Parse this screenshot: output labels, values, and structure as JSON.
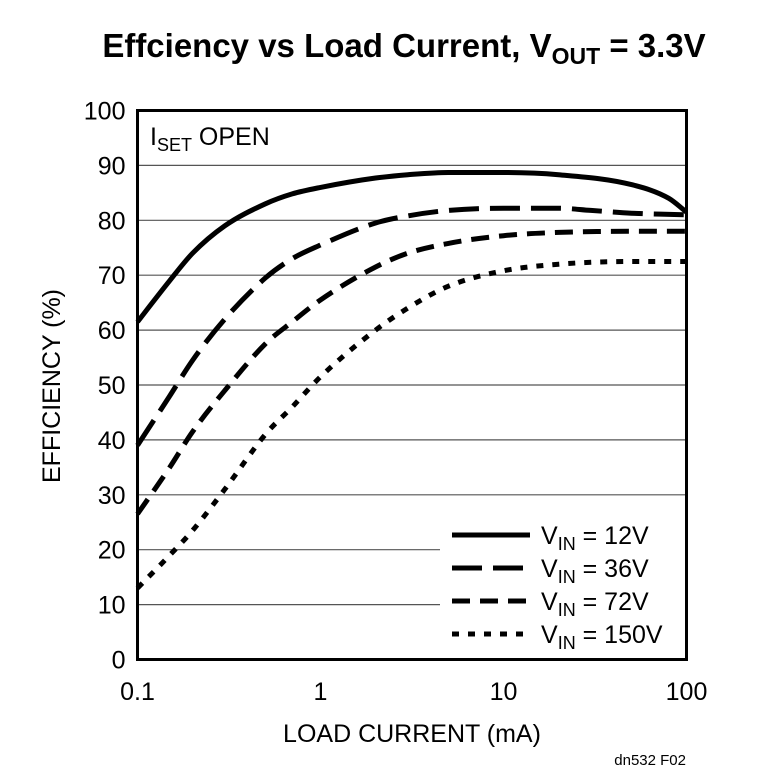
{
  "chart_data": {
    "type": "line",
    "title": {
      "main": "Effciency vs Load Current, V",
      "sub": "OUT",
      "tail": " = 3.3V"
    },
    "xlabel": "LOAD CURRENT (mA)",
    "ylabel": "EFFICIENCY (%)",
    "x_scale": "log",
    "xlim": [
      0.1,
      100
    ],
    "ylim": [
      0,
      100
    ],
    "x_ticks": [
      "0.1",
      "1",
      "10",
      "100"
    ],
    "y_ticks": [
      "0",
      "10",
      "20",
      "30",
      "40",
      "50",
      "60",
      "70",
      "80",
      "90",
      "100"
    ],
    "grid": true,
    "annotation": {
      "main": "I",
      "sub": "SET",
      "tail": " OPEN"
    },
    "legend_position": "bottom-right",
    "series": [
      {
        "name": "V",
        "name_sub": "IN",
        "name_tail": " = 12V",
        "dash": "solid",
        "x": [
          0.1,
          0.15,
          0.2,
          0.3,
          0.5,
          0.7,
          1,
          2,
          3,
          5,
          10,
          20,
          50,
          80,
          100
        ],
        "values": [
          61.5,
          69,
          74,
          79,
          83,
          84.8,
          86,
          87.7,
          88.3,
          88.7,
          88.7,
          88.3,
          86.5,
          84,
          81.5
        ]
      },
      {
        "name": "V",
        "name_sub": "IN",
        "name_tail": " = 36V",
        "dash": "long",
        "x": [
          0.1,
          0.15,
          0.2,
          0.3,
          0.5,
          0.7,
          1,
          2,
          3,
          5,
          10,
          20,
          30,
          50,
          100
        ],
        "values": [
          39,
          48,
          54.5,
          62,
          69.5,
          73,
          75.5,
          79.5,
          80.8,
          81.8,
          82.2,
          82.2,
          81.8,
          81.3,
          81
        ]
      },
      {
        "name": "V",
        "name_sub": "IN",
        "name_tail": " = 72V",
        "dash": "medium",
        "x": [
          0.1,
          0.15,
          0.2,
          0.3,
          0.5,
          0.7,
          1,
          2,
          3,
          5,
          10,
          20,
          50,
          100
        ],
        "values": [
          26.5,
          35,
          41.5,
          49,
          57.5,
          61.5,
          65.5,
          71.5,
          74,
          75.8,
          77.2,
          77.8,
          78,
          78
        ]
      },
      {
        "name": "V",
        "name_sub": "IN",
        "name_tail": " = 150V",
        "dash": "short",
        "x": [
          0.1,
          0.15,
          0.2,
          0.3,
          0.5,
          0.7,
          1,
          2,
          3,
          5,
          10,
          20,
          50,
          100
        ],
        "values": [
          13,
          19,
          23.5,
          31,
          41,
          46,
          51.5,
          60,
          64,
          68,
          70.8,
          72,
          72.5,
          72.5
        ]
      }
    ]
  },
  "figure_id": "dn532 F02"
}
